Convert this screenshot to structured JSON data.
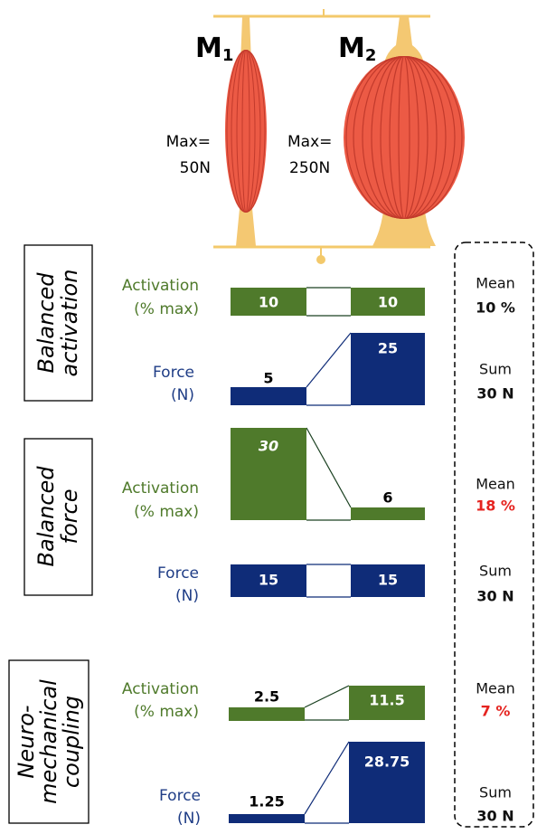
{
  "muscles": [
    {
      "name": "M",
      "subscript": "1",
      "max_label": [
        "Max=",
        "50N"
      ]
    },
    {
      "name": "M",
      "subscript": "2",
      "max_label": [
        "Max=",
        "250N"
      ]
    }
  ],
  "scenarios": [
    {
      "title": [
        "Balanced",
        "activation"
      ],
      "activation": {
        "label": [
          "Activation",
          "(% max)"
        ],
        "values": [
          10,
          10
        ]
      },
      "force": {
        "label": [
          "Force",
          "(N)"
        ],
        "values": [
          5,
          25
        ]
      },
      "summary": {
        "mean_label": "Mean",
        "mean": "10 %",
        "sum_label": "Sum",
        "sum": "30 N"
      }
    },
    {
      "title": [
        "Balanced",
        "force"
      ],
      "activation": {
        "label": [
          "Activation",
          "(% max)"
        ],
        "values": [
          30,
          6
        ]
      },
      "force": {
        "label": [
          "Force",
          "(N)"
        ],
        "values": [
          15,
          15
        ]
      },
      "summary": {
        "mean_label": "Mean",
        "mean": "18 %",
        "sum_label": "Sum",
        "sum": "30 N"
      }
    },
    {
      "title": [
        "Neuro-",
        "mechanical",
        "coupling"
      ],
      "activation": {
        "label": [
          "Activation",
          "(% max)"
        ],
        "values": [
          2.5,
          11.5
        ]
      },
      "force": {
        "label": [
          "Force",
          "(N)"
        ],
        "values": [
          1.25,
          28.75
        ]
      },
      "summary": {
        "mean_label": "Mean",
        "mean": "7 %",
        "sum_label": "Sum",
        "sum": "30 N"
      }
    }
  ]
}
